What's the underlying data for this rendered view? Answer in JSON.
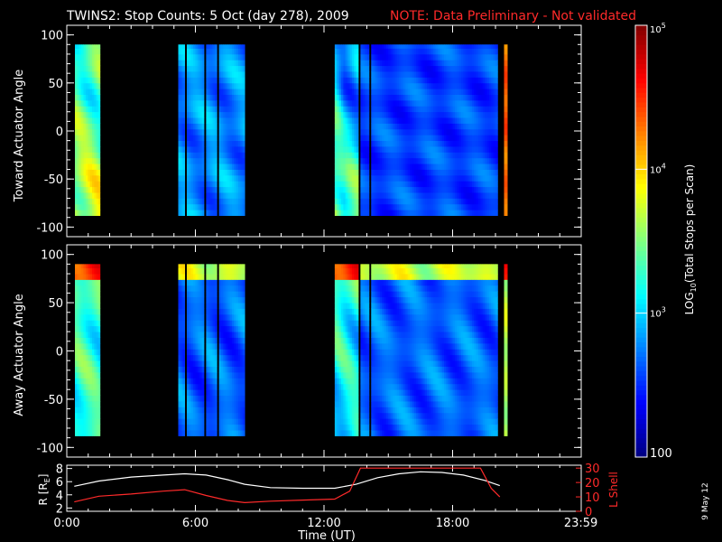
{
  "title": {
    "main": "TWINS2: Stop Counts:  5 Oct (day 278), 2009",
    "note": "NOTE: Data Preliminary - Not validated"
  },
  "date_stamp": "9 May 12",
  "colors": {
    "background": "#000000",
    "axes": "#ffffff",
    "note": "#ff2a2a",
    "l_shell": "#ff2a2a",
    "r_line": "#ffffff"
  },
  "chart_data": [
    {
      "type": "heatmap",
      "id": "toward",
      "ylabel": "Toward Actuator Angle",
      "ylim": [
        -110,
        110
      ],
      "yticks": [
        -100,
        -50,
        0,
        50,
        100
      ],
      "ytick_labels": [
        "-100",
        "-50",
        "0",
        "50",
        "100"
      ],
      "data_range": [
        -88,
        90
      ],
      "xlim_hours": [
        0,
        24
      ],
      "profile": "toward",
      "blocks": [
        {
          "start": 0.38,
          "end": 1.55,
          "base": 0.46,
          "amp": 0.1
        },
        {
          "start": 5.2,
          "end": 8.3,
          "base": 0.26,
          "amp": 0.06
        },
        {
          "start": 12.5,
          "end": 13.6,
          "base": 0.28,
          "amp": 0.1
        },
        {
          "start": 13.6,
          "end": 20.1,
          "base": 0.19,
          "amp": 0.04
        },
        {
          "start": 20.4,
          "end": 20.55,
          "base": 0.78,
          "amp": 0.02
        }
      ],
      "gaps": [
        [
          5.45,
          5.55
        ],
        [
          6.35,
          6.45
        ],
        [
          6.95,
          7.05
        ],
        [
          13.55,
          13.65
        ],
        [
          14.05,
          14.12
        ],
        [
          14.5,
          14.57
        ],
        [
          14.8,
          14.87
        ]
      ]
    },
    {
      "type": "heatmap",
      "id": "away",
      "ylabel": "Away Actuator Angle",
      "ylim": [
        -110,
        110
      ],
      "yticks": [
        -100,
        -50,
        0,
        50,
        100
      ],
      "ytick_labels": [
        "-100",
        "-50",
        "0",
        "50",
        "100"
      ],
      "data_range": [
        -88,
        90
      ],
      "xlim_hours": [
        0,
        24
      ],
      "profile": "away",
      "blocks": [
        {
          "start": 0.38,
          "end": 1.55,
          "base": 0.42,
          "amp": 0.08
        },
        {
          "start": 5.2,
          "end": 8.3,
          "base": 0.22,
          "amp": 0.06
        },
        {
          "start": 12.5,
          "end": 13.6,
          "base": 0.26,
          "amp": 0.1
        },
        {
          "start": 13.6,
          "end": 20.1,
          "base": 0.22,
          "amp": 0.05
        },
        {
          "start": 20.4,
          "end": 20.55,
          "base": 0.55,
          "amp": 0.02
        }
      ],
      "gaps": [
        [
          5.45,
          5.55
        ],
        [
          6.35,
          6.45
        ],
        [
          6.95,
          7.05
        ],
        [
          13.55,
          13.65
        ],
        [
          14.05,
          14.12
        ],
        [
          14.5,
          14.57
        ],
        [
          14.8,
          14.87
        ]
      ]
    },
    {
      "type": "line",
      "id": "orbit",
      "ylabel_left": "R [R",
      "ylabel_left_sub": "E",
      "ylabel_left_end": "]",
      "ylabel_right": "L Shell",
      "ylim_left": [
        1.5,
        8.5
      ],
      "yticks_left": [
        2,
        4,
        6,
        8
      ],
      "ylim_right": [
        0,
        32
      ],
      "yticks_right": [
        0,
        10,
        20,
        30
      ],
      "xlim_hours": [
        0,
        24
      ],
      "xticks_hours": [
        0,
        6,
        12,
        18,
        23.983
      ],
      "xtick_labels": [
        "0:00",
        "6:00",
        "12:00",
        "18:00",
        "23:59"
      ],
      "xlabel": "Time (UT)",
      "series": [
        {
          "role": "R",
          "axis": "left",
          "x": [
            0.35,
            1.5,
            3.0,
            4.5,
            5.5,
            6.5,
            7.5,
            8.3,
            9.5,
            11.0,
            12.5,
            13.5,
            14.5,
            15.5,
            16.5,
            17.5,
            18.5,
            19.5,
            20.2
          ],
          "y": [
            5.3,
            6.1,
            6.7,
            7.0,
            7.2,
            7.0,
            6.3,
            5.6,
            5.1,
            5.0,
            5.0,
            5.6,
            6.6,
            7.2,
            7.5,
            7.4,
            7.0,
            6.2,
            5.4
          ]
        },
        {
          "role": "L Shell",
          "axis": "right",
          "x": [
            0.35,
            1.5,
            3.0,
            4.5,
            5.5,
            6.5,
            7.5,
            8.3,
            9.5,
            11.0,
            12.5,
            13.2,
            13.7,
            19.3,
            19.8,
            20.2
          ],
          "y": [
            6.5,
            10.5,
            12.0,
            14.0,
            15.0,
            11.0,
            7.5,
            6.0,
            7.0,
            7.8,
            8.5,
            14.0,
            30.0,
            30.0,
            16.0,
            10.0
          ]
        }
      ]
    },
    {
      "type": "colorbar",
      "id": "colorbar",
      "label_prefix": "LOG",
      "label_sub": "10",
      "label_rest": "(Total Stops per Scan)",
      "range": [
        100,
        100000
      ],
      "ticks": [
        {
          "value": 100000,
          "base": "10",
          "exp": "5",
          "label": ""
        },
        {
          "value": 10000,
          "base": "10",
          "exp": "4",
          "label": ""
        },
        {
          "value": 1000,
          "base": "10",
          "exp": "3",
          "label": ""
        },
        {
          "value": 100,
          "base": "",
          "exp": "",
          "label": "100"
        }
      ]
    }
  ]
}
